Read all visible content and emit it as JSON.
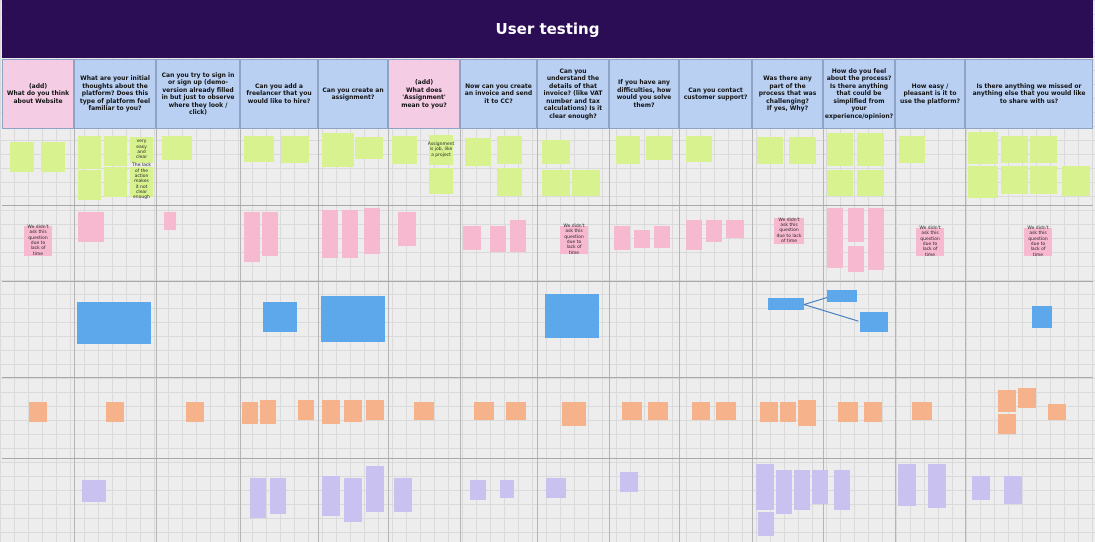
{
  "board": {
    "title": "User testing",
    "colors": {
      "title_bar": "#2b0d55",
      "question_blue": "#b9d0f2",
      "question_pink": "#f4cde4",
      "sticky_green": "#d8f28f",
      "sticky_pink": "#f7b9cf",
      "sticky_blue": "#5da8ea",
      "sticky_orange": "#f6b38b",
      "sticky_purple": "#c9c2f1"
    }
  },
  "columns": [
    {
      "color": "pink",
      "lines": [
        "(add)",
        "What do you think about Website"
      ]
    },
    {
      "color": "blue",
      "lines": [
        "What are your initial thoughts about the platform? Does this type of platform feel familiar to you?"
      ]
    },
    {
      "color": "blue",
      "lines": [
        "Can you try to sign in or sign up (demo-version already filled in but just to observe where they look / click)"
      ]
    },
    {
      "color": "blue",
      "lines": [
        "Can you add a freelancer that you would like to hire?"
      ]
    },
    {
      "color": "blue",
      "lines": [
        "Can you create an assignment?"
      ]
    },
    {
      "color": "pink",
      "lines": [
        "(add)",
        "What does 'Assignment' mean to you?"
      ]
    },
    {
      "color": "blue",
      "lines": [
        "Now can you create an invoice and send it to CC?"
      ]
    },
    {
      "color": "blue",
      "lines": [
        "Can you understand the details of that invoice? (like VAT number and tax calculations) Is it clear enough?"
      ]
    },
    {
      "color": "blue",
      "lines": [
        "If you have any difficulties, how would you solve them?"
      ]
    },
    {
      "color": "blue",
      "lines": [
        "Can you contact customer support?"
      ]
    },
    {
      "color": "blue",
      "lines": [
        "Was there any part of the process that was challenging?",
        "If yes, Why?"
      ]
    },
    {
      "color": "blue",
      "lines": [
        "How do you feel about the process? Is there anything that could be simplified from your experience/opinion?"
      ]
    },
    {
      "color": "blue",
      "lines": [
        "How easy / pleasant is it to use the platform?"
      ]
    },
    {
      "color": "blue",
      "lines": [
        "Is there anything we missed or anything else that you would like to share with us?"
      ]
    }
  ],
  "notes": {
    "didnt_ask": "We didn't ask this question due to lack of time",
    "assignment_is_job": "Assignment is job, like a project",
    "very_easy": "very easy and clear",
    "lack_of_action": "The lack of the action makes it not clear enough"
  }
}
